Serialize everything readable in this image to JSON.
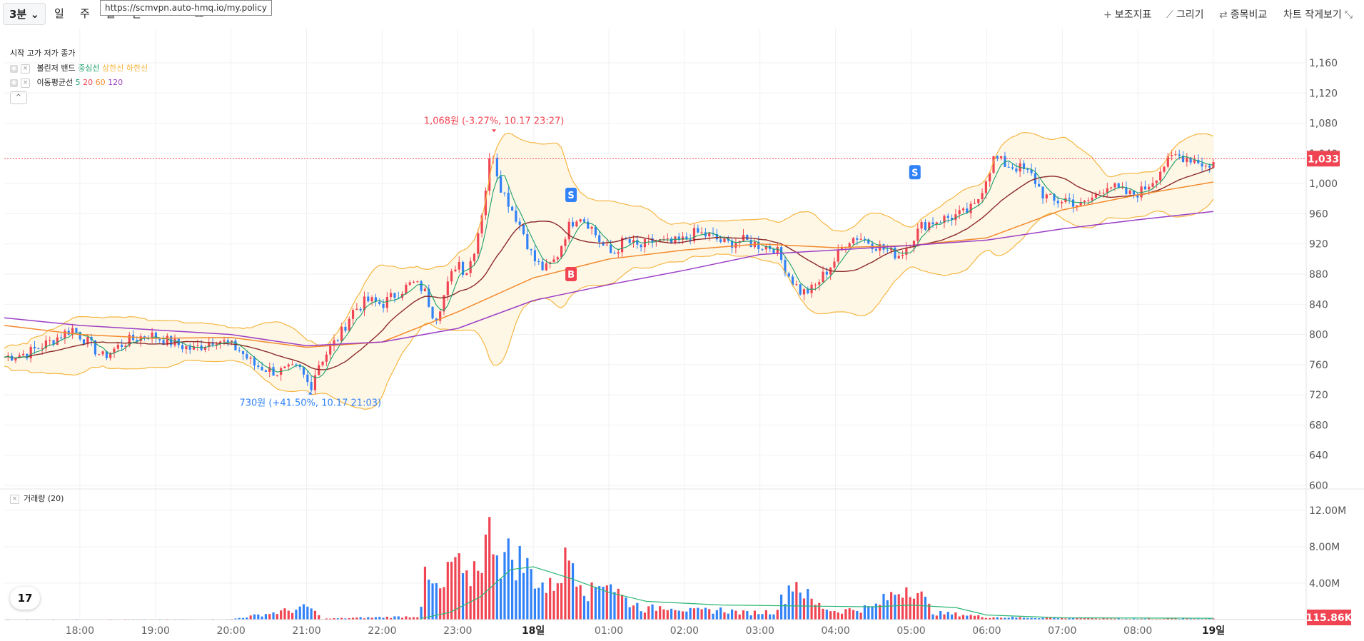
{
  "toolbar": {
    "timeframe_active": "3분",
    "timeframes": [
      "일",
      "주",
      "월",
      "년"
    ],
    "tools": [
      {
        "icon": "plus-icon",
        "label": "보조지표"
      },
      {
        "icon": "pencil-icon",
        "label": "그리기"
      },
      {
        "icon": "compare-icon",
        "label": "종목비교"
      },
      {
        "icon": "shrink-icon",
        "label": "차트 작게보기"
      }
    ],
    "tooltip_url": "https://scmvpn.auto-hmq.io/my.policy"
  },
  "legend": {
    "ohlc": "시작 고가 저가 종가",
    "bollinger": {
      "name": "볼린저 밴드",
      "mid": "중심선",
      "upper": "상한선",
      "lower": "하한선"
    },
    "ma": {
      "name": "이동평균선",
      "periods": [
        "5",
        "20",
        "60",
        "120"
      ]
    },
    "volume": "거래량 (20)"
  },
  "colors": {
    "up": "#f04452",
    "down": "#3182f6",
    "ma5": "#1a9e6a",
    "ma20": "#8b2a2a",
    "ma60": "#f28a2e",
    "ma120": "#9b3fc4",
    "band": "#f5b642",
    "band_fill": "#fff7e6",
    "volume_ma": "#2bb673"
  },
  "chart_data": {
    "type": "candlestick",
    "timeframe": "3분",
    "price_axis": {
      "ticks": [
        "1,160",
        "1,120",
        "1,080",
        "1,040",
        "1,000",
        "960",
        "920",
        "880",
        "840",
        "800",
        "760",
        "720",
        "680",
        "640",
        "600"
      ],
      "ylim": [
        600,
        1160
      ]
    },
    "volume_axis": {
      "ticks": [
        "12.00M",
        "8.00M",
        "4.00M"
      ],
      "ylim": [
        0,
        12000000
      ]
    },
    "time_axis": {
      "ticks": [
        "18:00",
        "19:00",
        "20:00",
        "21:00",
        "22:00",
        "23:00",
        "18일",
        "01:00",
        "02:00",
        "03:00",
        "04:00",
        "05:00",
        "06:00",
        "07:00",
        "08:00",
        "19일"
      ]
    },
    "current_price": "1,033",
    "current_volume": "115.86K",
    "annotations": {
      "high": "1,068원 (-3.27%, 10.17 23:27)",
      "low": "730원 (+41.50%, 10.17 21:03)"
    },
    "markers": [
      {
        "label": "S",
        "side": "sell",
        "time": "00:30",
        "price": 985
      },
      {
        "label": "B",
        "side": "buy",
        "time": "00:30",
        "price": 880
      },
      {
        "label": "S",
        "side": "sell",
        "time": "05:03",
        "price": 1015
      }
    ],
    "price_path": [
      [
        17.0,
        770
      ],
      [
        17.3,
        775
      ],
      [
        17.6,
        790
      ],
      [
        17.9,
        808
      ],
      [
        18.1,
        790
      ],
      [
        18.3,
        770
      ],
      [
        18.6,
        790
      ],
      [
        18.9,
        800
      ],
      [
        19.2,
        790
      ],
      [
        19.5,
        780
      ],
      [
        19.8,
        795
      ],
      [
        20.1,
        780
      ],
      [
        20.3,
        760
      ],
      [
        20.6,
        750
      ],
      [
        20.9,
        755
      ],
      [
        21.05,
        730
      ],
      [
        21.15,
        760
      ],
      [
        21.3,
        780
      ],
      [
        21.45,
        800
      ],
      [
        21.6,
        830
      ],
      [
        21.8,
        845
      ],
      [
        22.0,
        840
      ],
      [
        22.2,
        855
      ],
      [
        22.4,
        868
      ],
      [
        22.55,
        860
      ],
      [
        22.7,
        820
      ],
      [
        22.85,
        860
      ],
      [
        23.0,
        900
      ],
      [
        23.1,
        880
      ],
      [
        23.2,
        905
      ],
      [
        23.3,
        950
      ],
      [
        23.38,
        1000
      ],
      [
        23.45,
        1050
      ],
      [
        23.55,
        1000
      ],
      [
        23.7,
        970
      ],
      [
        23.85,
        940
      ],
      [
        24.0,
        900
      ],
      [
        24.15,
        885
      ],
      [
        24.3,
        900
      ],
      [
        24.45,
        940
      ],
      [
        24.6,
        960
      ],
      [
        24.75,
        945
      ],
      [
        24.9,
        920
      ],
      [
        25.05,
        905
      ],
      [
        25.2,
        925
      ],
      [
        25.4,
        915
      ],
      [
        25.6,
        925
      ],
      [
        25.8,
        920
      ],
      [
        26.0,
        925
      ],
      [
        26.15,
        935
      ],
      [
        26.35,
        930
      ],
      [
        26.55,
        920
      ],
      [
        26.75,
        925
      ],
      [
        27.0,
        918
      ],
      [
        27.2,
        915
      ],
      [
        27.4,
        875
      ],
      [
        27.55,
        855
      ],
      [
        27.7,
        860
      ],
      [
        27.85,
        880
      ],
      [
        28.0,
        900
      ],
      [
        28.15,
        925
      ],
      [
        28.3,
        930
      ],
      [
        28.5,
        920
      ],
      [
        28.7,
        910
      ],
      [
        28.85,
        905
      ],
      [
        29.0,
        925
      ],
      [
        29.15,
        945
      ],
      [
        29.3,
        950
      ],
      [
        29.5,
        955
      ],
      [
        29.7,
        960
      ],
      [
        29.85,
        970
      ],
      [
        30.0,
        1010
      ],
      [
        30.1,
        1035
      ],
      [
        30.25,
        1025
      ],
      [
        30.45,
        1020
      ],
      [
        30.6,
        1010
      ],
      [
        30.75,
        985
      ],
      [
        30.9,
        975
      ],
      [
        31.05,
        980
      ],
      [
        31.25,
        970
      ],
      [
        31.45,
        985
      ],
      [
        31.6,
        1000
      ],
      [
        31.75,
        990
      ],
      [
        31.9,
        985
      ],
      [
        32.05,
        990
      ],
      [
        32.2,
        1005
      ],
      [
        32.35,
        1025
      ],
      [
        32.5,
        1037
      ],
      [
        32.65,
        1035
      ],
      [
        32.8,
        1030
      ],
      [
        32.95,
        1020
      ],
      [
        33.0,
        1033
      ]
    ],
    "ma120_path": [
      [
        17.0,
        822
      ],
      [
        18.0,
        812
      ],
      [
        19.0,
        806
      ],
      [
        20.0,
        800
      ],
      [
        21.0,
        785
      ],
      [
        22.0,
        790
      ],
      [
        23.0,
        808
      ],
      [
        24.0,
        845
      ],
      [
        25.0,
        866
      ],
      [
        26.0,
        885
      ],
      [
        27.0,
        906
      ],
      [
        28.0,
        912
      ],
      [
        29.0,
        918
      ],
      [
        30.0,
        925
      ],
      [
        31.0,
        940
      ],
      [
        32.0,
        952
      ],
      [
        33.0,
        963
      ]
    ],
    "ma60_path": [
      [
        17.0,
        812
      ],
      [
        18.0,
        800
      ],
      [
        19.0,
        795
      ],
      [
        20.0,
        796
      ],
      [
        21.0,
        783
      ],
      [
        22.0,
        790
      ],
      [
        23.0,
        830
      ],
      [
        24.0,
        875
      ],
      [
        25.0,
        900
      ],
      [
        26.0,
        912
      ],
      [
        27.0,
        920
      ],
      [
        28.0,
        915
      ],
      [
        29.0,
        918
      ],
      [
        30.0,
        928
      ],
      [
        31.0,
        965
      ],
      [
        32.0,
        985
      ],
      [
        33.0,
        1002
      ]
    ],
    "volume_path": [
      [
        17.0,
        0.05
      ],
      [
        20.0,
        0.05
      ],
      [
        21.05,
        1.5
      ],
      [
        21.2,
        0.1
      ],
      [
        22.5,
        0.4
      ],
      [
        22.55,
        4.8
      ],
      [
        22.8,
        3.2
      ],
      [
        22.95,
        7.8
      ],
      [
        23.1,
        4.0
      ],
      [
        23.25,
        7.0
      ],
      [
        23.4,
        9.5
      ],
      [
        23.48,
        11.7
      ],
      [
        23.55,
        7.5
      ],
      [
        23.75,
        7.8
      ],
      [
        24.0,
        5.5
      ],
      [
        24.2,
        3.5
      ],
      [
        24.5,
        8.0
      ],
      [
        24.75,
        3.0
      ],
      [
        24.95,
        5.5
      ],
      [
        25.2,
        2.5
      ],
      [
        25.5,
        1.2
      ],
      [
        25.8,
        1.8
      ],
      [
        26.1,
        1.0
      ],
      [
        26.5,
        1.2
      ],
      [
        26.8,
        0.8
      ],
      [
        27.2,
        1.0
      ],
      [
        27.45,
        5.0
      ],
      [
        27.7,
        2.0
      ],
      [
        28.0,
        1.0
      ],
      [
        28.5,
        1.5
      ],
      [
        28.8,
        3.3
      ],
      [
        29.0,
        4.5
      ],
      [
        29.3,
        0.8
      ],
      [
        29.7,
        0.6
      ],
      [
        30.0,
        0.3
      ],
      [
        31.0,
        0.2
      ],
      [
        32.0,
        0.1
      ],
      [
        33.0,
        0.12
      ]
    ],
    "volume_ma_path": [
      [
        22.5,
        0.1
      ],
      [
        22.9,
        0.8
      ],
      [
        23.3,
        2.5
      ],
      [
        23.7,
        5.5
      ],
      [
        24.0,
        5.8
      ],
      [
        24.5,
        4.5
      ],
      [
        25.0,
        3.0
      ],
      [
        25.5,
        2.0
      ],
      [
        26.5,
        1.6
      ],
      [
        27.5,
        1.5
      ],
      [
        28.5,
        1.4
      ],
      [
        29.0,
        1.6
      ],
      [
        29.6,
        1.3
      ],
      [
        30.0,
        0.5
      ],
      [
        31.0,
        0.2
      ],
      [
        33.0,
        0.15
      ]
    ]
  }
}
